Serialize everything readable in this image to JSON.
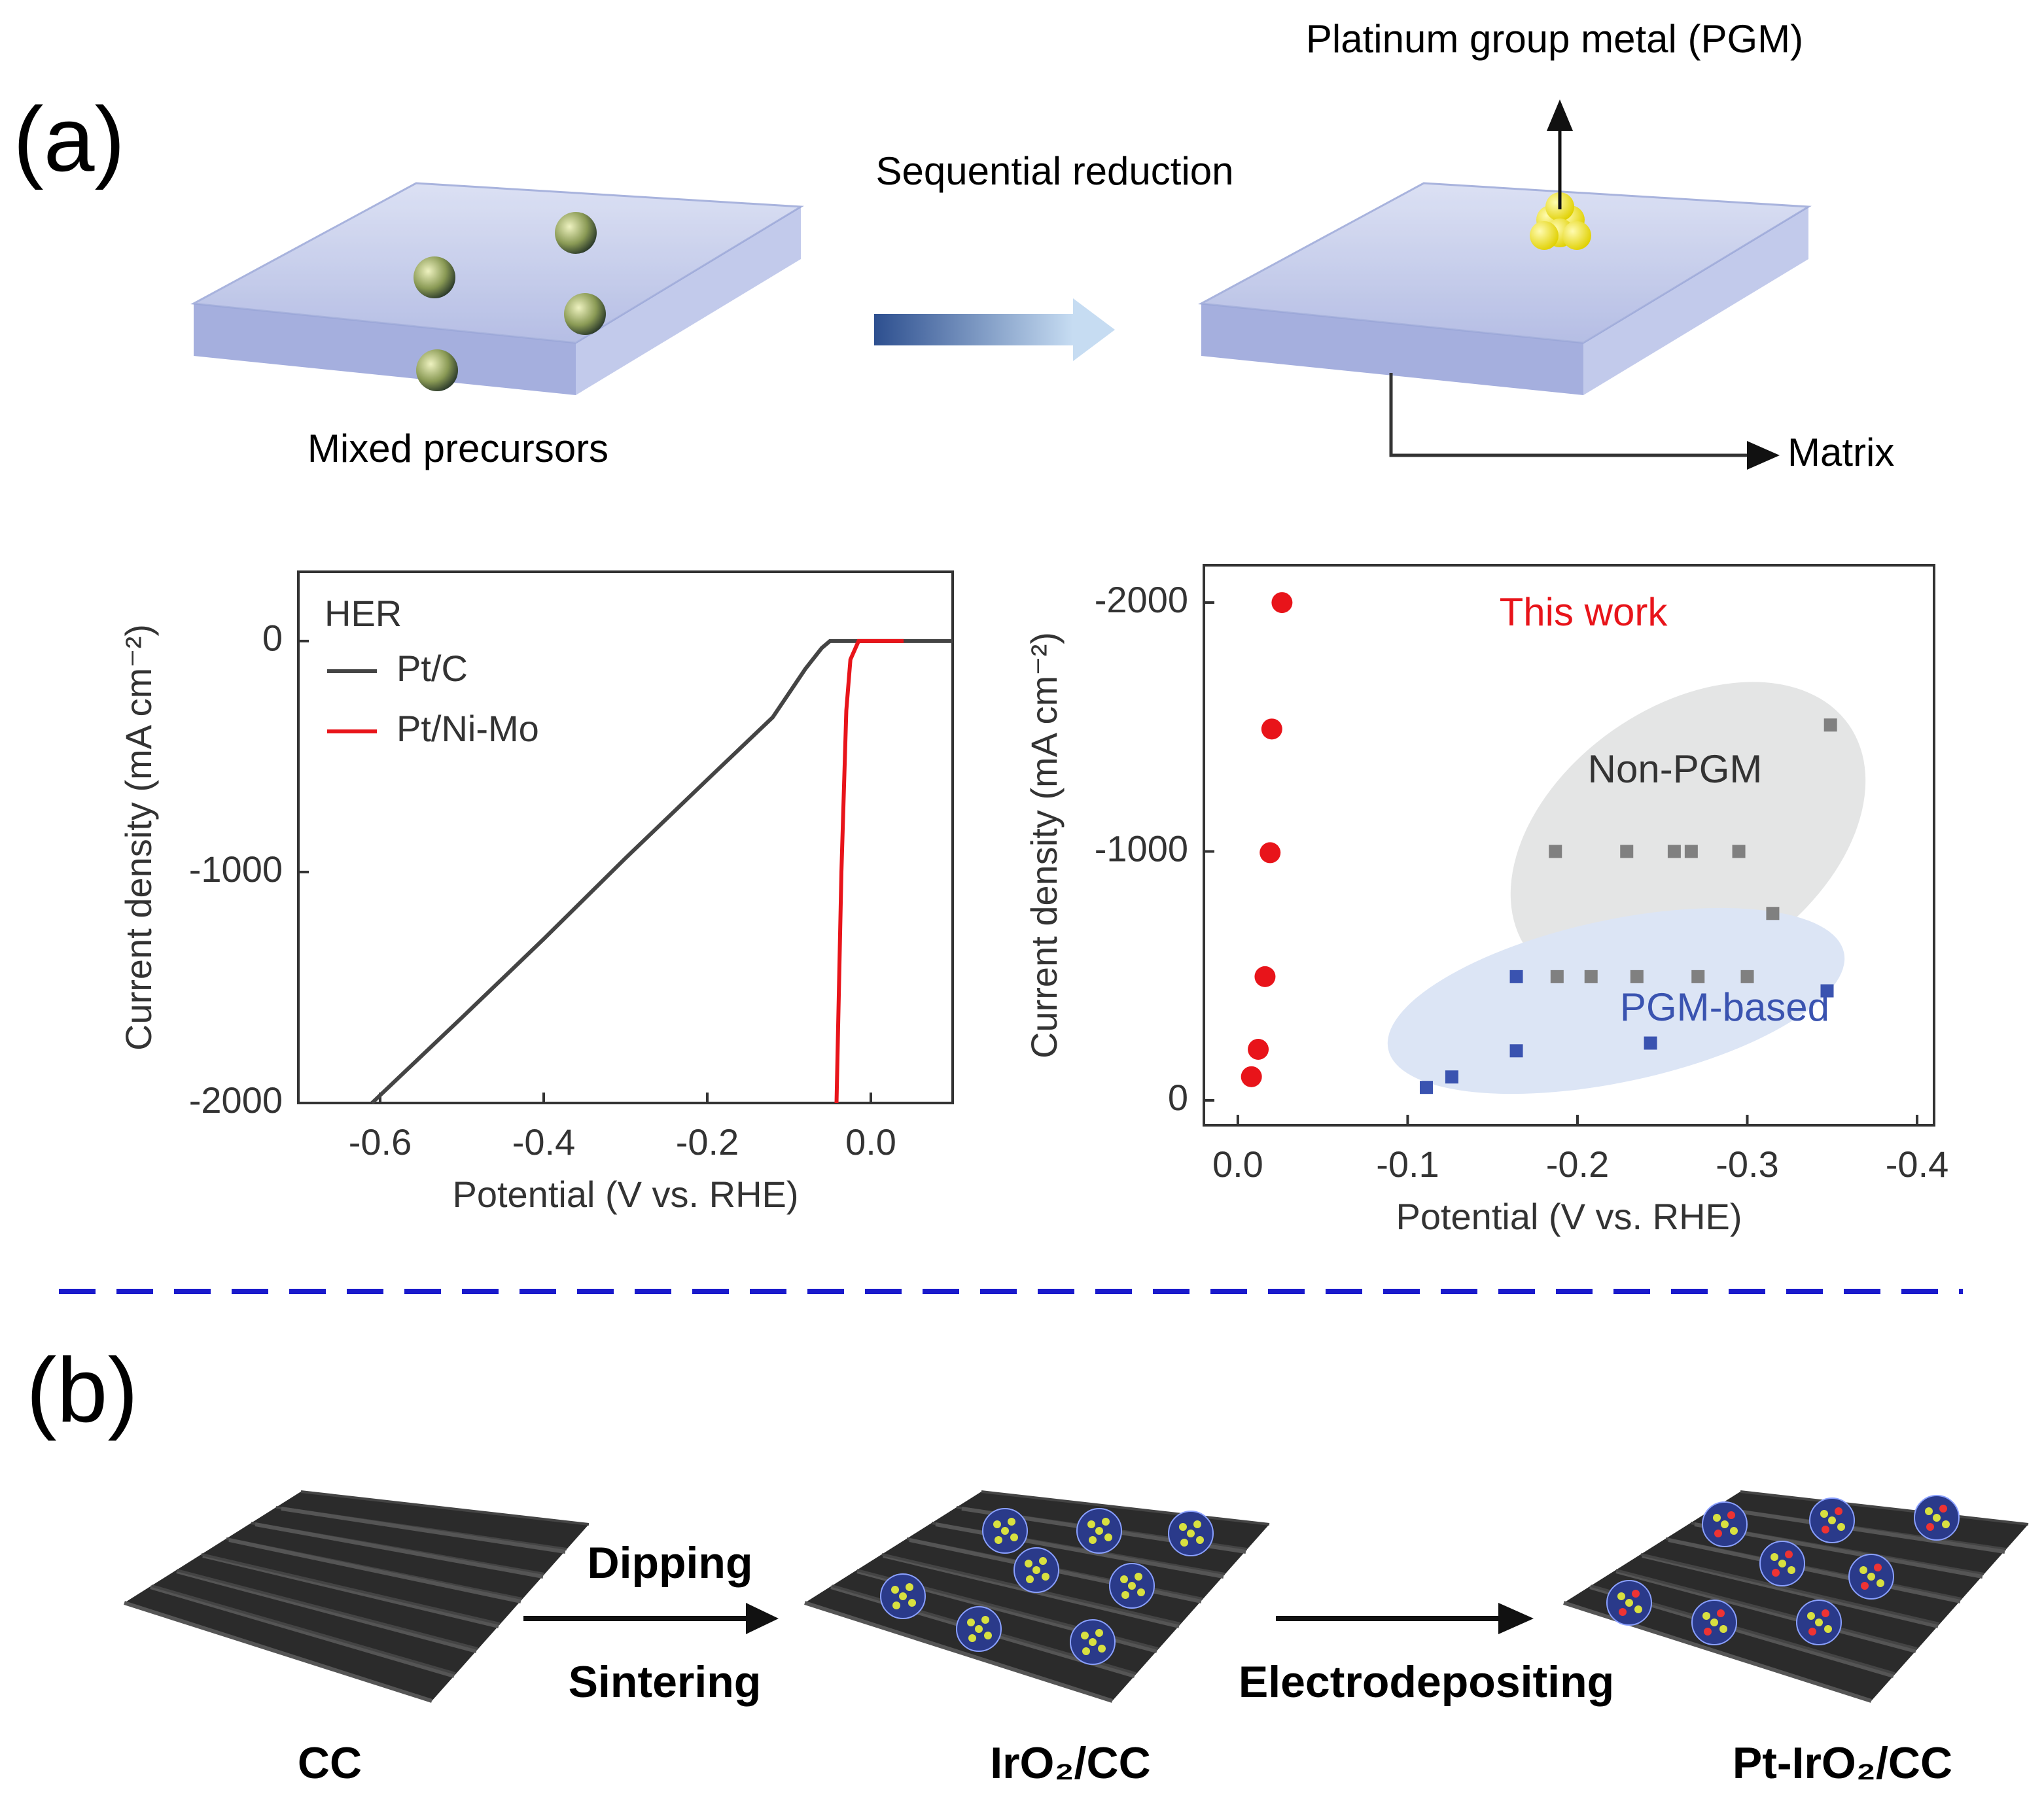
{
  "panel_a": {
    "label": "(a)",
    "pgm_label": "Platinum group metal (PGM)",
    "step_label": "Sequential reduction",
    "start_label": "Mixed precursors",
    "matrix_label": "Matrix"
  },
  "chart_data": [
    {
      "type": "line",
      "legend_title": "HER",
      "legend": "upper left",
      "xlabel": "Potential (V vs. RHE)",
      "ylabel": "Current density (mA cm⁻²)",
      "xlim": [
        -0.7,
        0.1
      ],
      "xticks": [
        -0.6,
        -0.4,
        -0.2,
        {
          "value": 0,
          "label": "0.0"
        }
      ],
      "ylim": [
        -2000,
        300
      ],
      "yticks": [
        -2000,
        -1000,
        0
      ],
      "series": [
        {
          "name": "Pt/C",
          "color": "#444444",
          "x": [
            -0.61,
            -0.5,
            -0.4,
            -0.3,
            -0.2,
            -0.12,
            -0.08,
            -0.06,
            -0.05,
            0,
            0.1
          ],
          "values": [
            -2000,
            -1630,
            -1290,
            -940,
            -600,
            -330,
            -120,
            -30,
            0,
            0,
            0
          ]
        },
        {
          "name": "Pt/Ni-Mo",
          "color": "#e8141a",
          "x": [
            -0.042,
            -0.036,
            -0.03,
            -0.025,
            -0.015,
            0,
            0.04
          ],
          "values": [
            -2000,
            -1000,
            -300,
            -80,
            0,
            0,
            0
          ]
        }
      ]
    },
    {
      "type": "scatter",
      "xlabel": "Potential (V vs. RHE)",
      "ylabel": "Current density (mA cm⁻²)",
      "xlim": [
        0.02,
        -0.41
      ],
      "xticks": [
        {
          "value": 0,
          "label": "0.0"
        },
        -0.1,
        -0.2,
        -0.3,
        -0.4
      ],
      "ylim": [
        100,
        -2150
      ],
      "yticks": [
        -2000,
        -1000,
        0
      ],
      "series": [
        {
          "name": "This work",
          "color": "#e8141a",
          "marker": "circle",
          "x": [
            -0.008,
            -0.012,
            -0.016,
            -0.019,
            -0.02,
            -0.026
          ],
          "values": [
            -95,
            -205,
            -497,
            -995,
            -1492,
            -2000
          ]
        },
        {
          "name": "Non-PGM",
          "color": "#808080",
          "marker": "square",
          "x": [
            -0.187,
            -0.229,
            -0.257,
            -0.267,
            -0.295,
            -0.349,
            -0.315,
            -0.188,
            -0.208,
            -0.235,
            -0.271,
            -0.3
          ],
          "values": [
            -1000,
            -1000,
            -1000,
            -1000,
            -1000,
            -1508,
            -751,
            -497,
            -497,
            -497,
            -497,
            -497
          ]
        },
        {
          "name": "PGM-based",
          "color": "#3a53b0",
          "marker": "square",
          "x": [
            -0.164,
            -0.164,
            -0.111,
            -0.126,
            -0.243,
            -0.347
          ],
          "values": [
            -497,
            -199,
            -52,
            -94,
            -230,
            -440
          ]
        }
      ]
    }
  ],
  "panel_b": {
    "label": "(b)",
    "step1_top": "Dipping",
    "step1_bottom": "Sintering",
    "step2": "Electrodepositing",
    "stages": [
      "CC",
      "IrO₂/CC",
      "Pt-IrO₂/CC"
    ]
  }
}
